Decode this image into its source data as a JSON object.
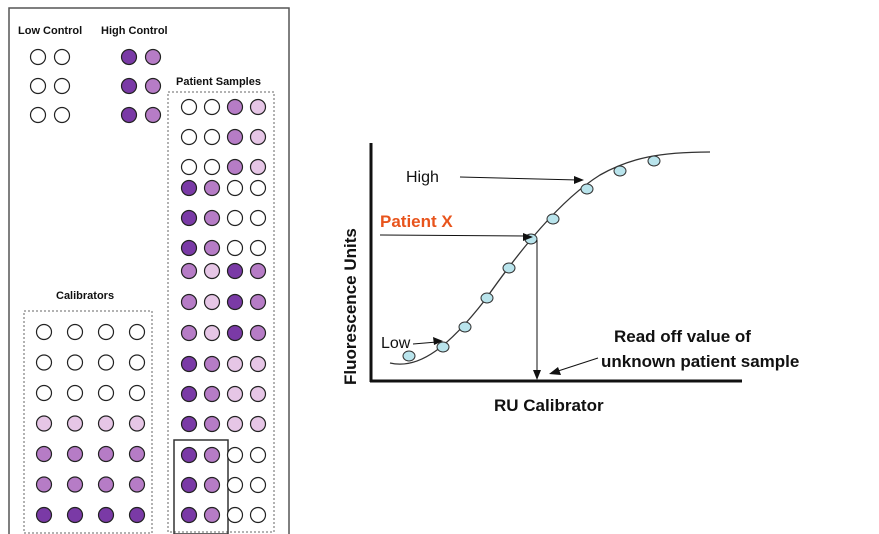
{
  "plate": {
    "low_control_label": "Low Control",
    "high_control_label": "High Control",
    "patient_samples_label": "Patient Samples",
    "calibrators_label": "Calibrators",
    "low_control_wells": [
      [
        "w",
        "w"
      ],
      [
        "w",
        "w"
      ],
      [
        "w",
        "w"
      ]
    ],
    "high_control_wells": [
      [
        "d",
        "m"
      ],
      [
        "d",
        "m"
      ],
      [
        "d",
        "m"
      ]
    ],
    "patient_well_rows": [
      [
        "w",
        "w",
        "m",
        "l"
      ],
      [
        "w",
        "w",
        "m",
        "l"
      ],
      [
        "w",
        "w",
        "m",
        "l"
      ],
      [
        "d",
        "m",
        "w",
        "w"
      ],
      [
        "d",
        "m",
        "w",
        "w"
      ],
      [
        "d",
        "m",
        "w",
        "w"
      ],
      [
        "m",
        "l",
        "d",
        "m"
      ],
      [
        "m",
        "l",
        "d",
        "m"
      ],
      [
        "m",
        "l",
        "d",
        "m"
      ],
      [
        "d",
        "m",
        "l",
        "l"
      ],
      [
        "d",
        "m",
        "l",
        "l"
      ],
      [
        "d",
        "m",
        "l",
        "l"
      ],
      [
        "d",
        "m",
        "w",
        "w"
      ],
      [
        "d",
        "m",
        "w",
        "w"
      ],
      [
        "d",
        "m",
        "w",
        "w"
      ]
    ],
    "calibrator_rows": [
      [
        "w",
        "w",
        "w",
        "w"
      ],
      [
        "w",
        "w",
        "w",
        "w"
      ],
      [
        "w",
        "w",
        "w",
        "w"
      ],
      [
        "l",
        "l",
        "l",
        "l"
      ],
      [
        "m",
        "m",
        "m",
        "m"
      ],
      [
        "m",
        "m",
        "m",
        "m"
      ],
      [
        "d",
        "d",
        "d",
        "d"
      ]
    ],
    "well_colors": {
      "w": "#ffffff",
      "l": "#e6c6e6",
      "m": "#b67cc6",
      "d": "#7a3aa6"
    }
  },
  "curve": {
    "ylabel": "Fluorescence Units",
    "xlabel": "RU Calibrator",
    "high_label": "High",
    "low_label": "Low",
    "patient_label": "Patient X",
    "patient_color": "#e8541c",
    "read_off_line1": "Read off value of",
    "read_off_line2": "unknown patient sample",
    "point_fill": "#b9e4ec"
  }
}
